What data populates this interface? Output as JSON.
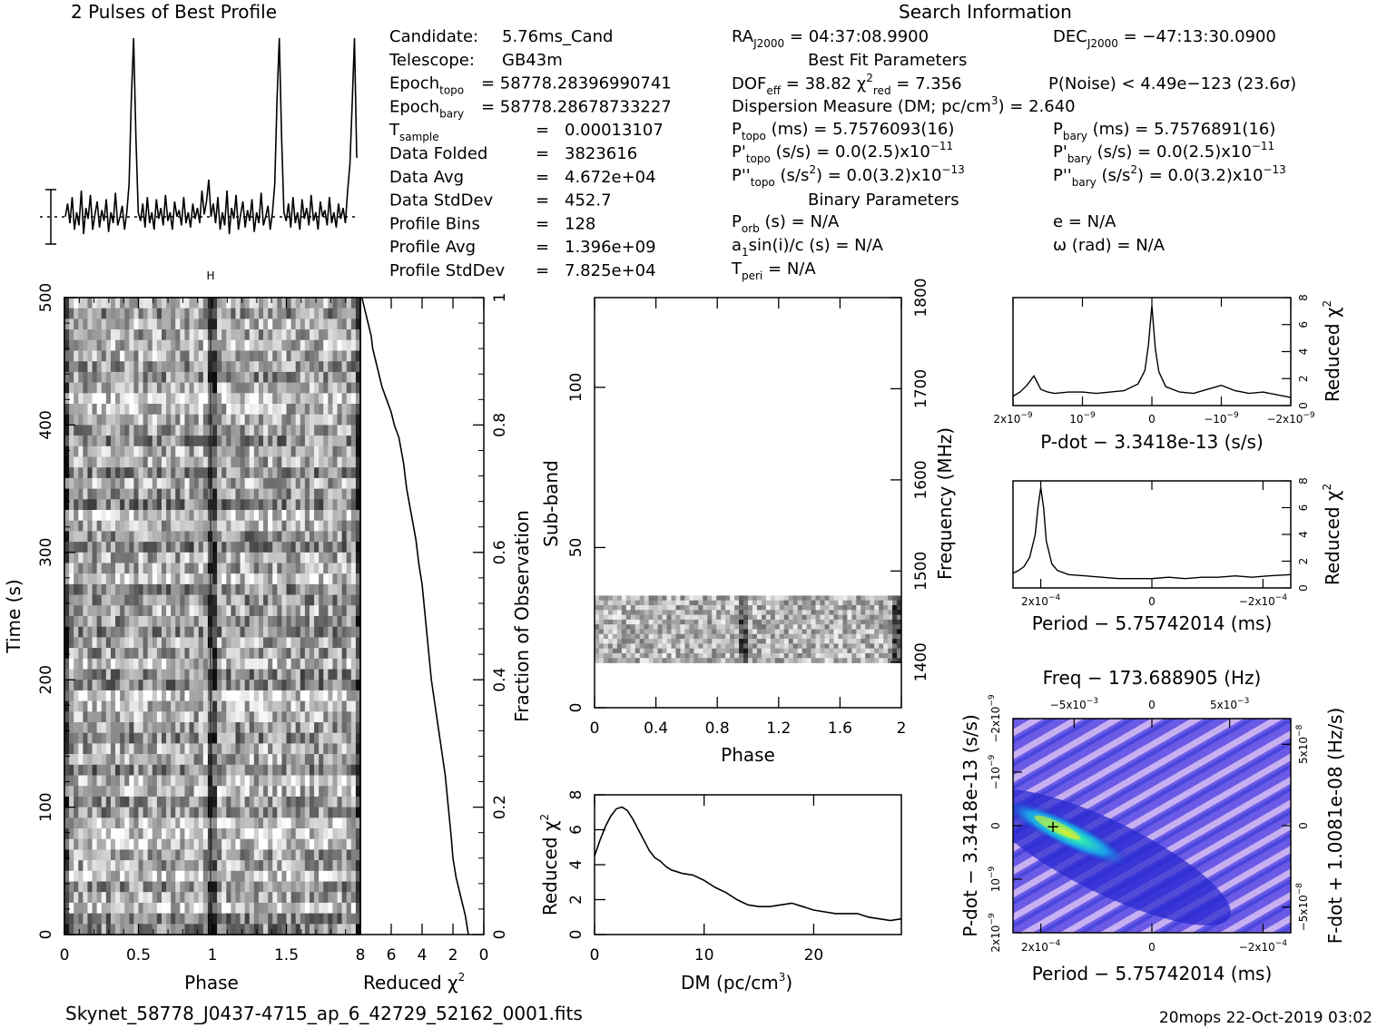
{
  "header": {
    "profile_title": "2 Pulses of Best Profile",
    "search_title": "Search Information",
    "best_fit_title": "Best Fit Parameters",
    "binary_title": "Binary Parameters"
  },
  "info_left": [
    {
      "label": "Candidate:",
      "value": "5.76ms_Cand"
    },
    {
      "label": "Telescope:",
      "value": "GB43m"
    },
    {
      "label": "Epoch",
      "sub": "topo",
      "value": "= 58778.2839699074​1"
    },
    {
      "label": "Epoch",
      "sub": "bary",
      "value": "= 58778.28678733227"
    },
    {
      "label": "T",
      "sub": "sample",
      "eq": "=",
      "value": "0.00013107"
    },
    {
      "label": "Data Folded",
      "eq": "=",
      "value": "3823616"
    },
    {
      "label": "Data Avg",
      "eq": "=",
      "value": "4.672e+04"
    },
    {
      "label": "Data StdDev",
      "eq": "=",
      "value": "452.7"
    },
    {
      "label": "Profile Bins",
      "eq": "=",
      "value": "128"
    },
    {
      "label": "Profile Avg",
      "eq": "=",
      "value": "1.396e+09"
    },
    {
      "label": "Profile StdDev",
      "eq": "=",
      "value": "7.825e+04"
    }
  ],
  "info_right": {
    "ra": "= 04:37:08.9900",
    "dec": "= −47:13:30.0900",
    "dof": "= 38.82",
    "chi_red": "= 7.356",
    "pnoise": "P(Noise) < 4.49e−123   (23.6σ)",
    "dm": "Dispersion Measure (DM; pc/cm",
    "dm_value": ") = 2.640",
    "ptopo": "(ms) =  5.7576093(16)",
    "pbary": "(ms) =  5.7576891(16)",
    "pdtopo": "(s/s) = 0.0(2.5)x10",
    "pdtopo_exp": "−11",
    "pdbary": "(s/s) = 0.0(2.5)x10",
    "pdbary_exp": "−11",
    "pddtopo": "(s/s",
    "pddtopo_tail": ") = 0.0(3.2)x10",
    "pddtopo_exp": "−13",
    "pddbary": "(s/s",
    "pddbary_tail": ") = 0.0(3.2)x10",
    "pddbary_exp": "−13",
    "porb": "(s) = N/A",
    "ecc": "e = N/A",
    "asini": "sin(i)/c (s) = N/A",
    "omega": "ω (rad) = N/A",
    "tperi": "= N/A"
  },
  "footer": {
    "filename": "Skynet_58778_J0437-4715_ap_6_42729_52162_0001.fits",
    "stamp": "20mops 22-Oct-2019 03:02"
  },
  "chart_data": [
    {
      "type": "line",
      "name_key": "profile",
      "title": "2 Pulses of Best Profile",
      "x": "Phase 0–2 (two copies of profile)",
      "values": [
        0.18,
        0.24,
        0.15,
        0.27,
        0.12,
        0.2,
        0.14,
        0.3,
        0.1,
        0.22,
        0.17,
        0.28,
        0.12,
        0.19,
        0.25,
        0.13,
        0.21,
        0.16,
        0.26,
        0.11,
        0.2,
        0.15,
        0.29,
        0.14,
        0.18,
        0.23,
        0.12,
        0.2,
        0.33,
        0.72,
        1.0,
        0.55,
        0.2,
        0.16,
        0.24,
        0.13,
        0.27,
        0.15,
        0.2,
        0.12,
        0.26,
        0.17,
        0.22,
        0.14,
        0.28,
        0.16,
        0.2,
        0.12,
        0.25,
        0.18,
        0.21,
        0.14,
        0.27,
        0.15,
        0.2,
        0.13,
        0.24,
        0.17,
        0.22,
        0.15,
        0.3,
        0.19,
        0.25,
        0.35,
        0.18,
        0.24,
        0.15,
        0.27,
        0.12,
        0.2,
        0.14,
        0.3,
        0.1,
        0.22,
        0.17,
        0.28,
        0.12,
        0.19,
        0.25,
        0.13,
        0.21,
        0.16,
        0.26,
        0.11,
        0.2,
        0.15,
        0.29,
        0.14,
        0.18,
        0.23,
        0.12,
        0.2,
        0.33,
        0.72,
        1.0,
        0.55,
        0.2,
        0.16,
        0.24,
        0.13,
        0.27,
        0.15,
        0.2,
        0.12,
        0.26,
        0.17,
        0.22,
        0.14,
        0.28,
        0.16,
        0.2,
        0.12,
        0.25,
        0.18,
        0.21,
        0.14,
        0.27,
        0.15,
        0.2,
        0.13,
        0.24,
        0.17,
        0.22,
        0.15,
        0.3,
        0.42,
        0.7,
        1.0,
        0.45
      ]
    },
    {
      "type": "heatmap",
      "name_key": "time_phase",
      "xlabel": "Phase",
      "ylabel": "Time (s)",
      "xlim": [
        0,
        2
      ],
      "ylim": [
        0,
        500
      ],
      "xticks": [
        "0",
        "0.5",
        "1",
        "1.5"
      ],
      "yticks": [
        "0",
        "100",
        "200",
        "300",
        "400",
        "500"
      ]
    },
    {
      "type": "line",
      "name_key": "fraction_chi",
      "xlabel": "Reduced χ",
      "ylabel": "Fraction of Observation",
      "xlim": [
        8,
        0
      ],
      "ylim": [
        0,
        1
      ],
      "xticks": [
        "8",
        "6",
        "4",
        "2",
        "0"
      ],
      "yticks": [
        "0",
        "0.2",
        "0.4",
        "0.6",
        "0.8",
        "1"
      ],
      "x": [
        1.0,
        1.2,
        1.5,
        1.8,
        2.0,
        2.1,
        2.3,
        2.5,
        2.8,
        3.1,
        3.4,
        3.6,
        3.8,
        4.0,
        4.2,
        4.4,
        4.7,
        5.0,
        5.2,
        5.5,
        5.8,
        6.0,
        6.3,
        6.6,
        6.8,
        7.0,
        7.2,
        7.3,
        7.5,
        7.6,
        7.7,
        7.9
      ],
      "y": [
        0.0,
        0.03,
        0.06,
        0.09,
        0.12,
        0.15,
        0.2,
        0.25,
        0.3,
        0.35,
        0.4,
        0.45,
        0.5,
        0.55,
        0.58,
        0.62,
        0.66,
        0.7,
        0.74,
        0.78,
        0.8,
        0.82,
        0.84,
        0.86,
        0.88,
        0.9,
        0.92,
        0.94,
        0.96,
        0.97,
        0.98,
        1.0
      ]
    },
    {
      "type": "heatmap",
      "name_key": "subband_phase",
      "xlabel": "Phase",
      "ylabel": "Sub-band",
      "y2label": "Frequency (MHz)",
      "xlim": [
        0,
        2
      ],
      "ylim": [
        0,
        128
      ],
      "y2lim": [
        1350,
        1800
      ],
      "xticks": [
        "0",
        "0.4",
        "0.8",
        "1.2",
        "1.6",
        "2"
      ],
      "yticks": [
        "0",
        "50",
        "100"
      ],
      "y2ticks": [
        "1400",
        "1500",
        "1600",
        "1700",
        "1800"
      ],
      "data_band": [
        14,
        35
      ]
    },
    {
      "type": "line",
      "name_key": "dm_curve",
      "xlabel": "DM (pc/cm",
      "ylabel": "Reduced χ",
      "xlim": [
        0,
        28
      ],
      "ylim": [
        0,
        8
      ],
      "xticks": [
        "0",
        "10",
        "20"
      ],
      "yticks": [
        "0",
        "2",
        "4",
        "6",
        "8"
      ],
      "x": [
        0,
        0.5,
        1,
        1.5,
        2,
        2.5,
        3,
        3.5,
        4,
        4.5,
        5,
        5.5,
        6,
        6.5,
        7,
        7.5,
        8,
        9,
        10,
        11,
        12,
        13,
        14,
        15,
        16,
        17,
        18,
        19,
        20,
        21,
        22,
        23,
        24,
        25,
        26,
        27,
        28
      ],
      "y": [
        4.5,
        5.4,
        6.2,
        6.8,
        7.2,
        7.3,
        7.1,
        6.6,
        6.0,
        5.4,
        4.8,
        4.4,
        4.2,
        3.9,
        3.7,
        3.6,
        3.5,
        3.4,
        3.1,
        2.7,
        2.4,
        2.0,
        1.7,
        1.6,
        1.6,
        1.7,
        1.8,
        1.6,
        1.4,
        1.3,
        1.2,
        1.2,
        1.2,
        1.0,
        0.9,
        0.8,
        0.9
      ]
    },
    {
      "type": "line",
      "name_key": "pdot_chi",
      "xlabel": "P-dot − 3.3418e-13 (s/s)",
      "ylabel": "Reduced χ",
      "xlim": [
        2e-09,
        -2e-09
      ],
      "ylim": [
        0,
        8
      ],
      "xticks": [
        "2x10",
        "10",
        "0",
        "−10",
        "−2x10"
      ],
      "yticks": [
        "0",
        "2",
        "4",
        "6",
        "8"
      ],
      "x": [
        2.0,
        1.9,
        1.8,
        1.7,
        1.6,
        1.5,
        1.4,
        1.2,
        1.0,
        0.8,
        0.6,
        0.4,
        0.2,
        0.1,
        0.05,
        0.0,
        -0.05,
        -0.1,
        -0.2,
        -0.4,
        -0.6,
        -0.8,
        -1.0,
        -1.2,
        -1.4,
        -1.6,
        -1.8,
        -2.0
      ],
      "y": [
        0.7,
        1.0,
        1.5,
        2.2,
        1.2,
        1.0,
        0.9,
        1.0,
        1.0,
        0.9,
        1.0,
        1.1,
        1.6,
        2.6,
        4.5,
        7.4,
        4.2,
        2.5,
        1.4,
        1.0,
        0.9,
        1.2,
        1.5,
        1.1,
        0.9,
        1.0,
        0.8,
        0.6
      ]
    },
    {
      "type": "line",
      "name_key": "period_chi",
      "xlabel": "Period − 5.75742014 (ms)",
      "ylabel": "Reduced χ",
      "xlim": [
        0.00025,
        -0.00025
      ],
      "ylim": [
        0,
        8
      ],
      "xticks": [
        "2x10",
        "0",
        "−2x10"
      ],
      "yticks": [
        "0",
        "2",
        "4",
        "6",
        "8"
      ],
      "x": [
        2.5,
        2.4,
        2.3,
        2.2,
        2.1,
        2.05,
        2.0,
        1.95,
        1.9,
        1.8,
        1.7,
        1.5,
        1.2,
        0.9,
        0.6,
        0.3,
        0.0,
        -0.3,
        -0.6,
        -0.9,
        -1.2,
        -1.5,
        -1.8,
        -2.1,
        -2.5
      ],
      "y": [
        1.1,
        1.3,
        1.6,
        2.3,
        4.0,
        6.0,
        7.5,
        6.0,
        3.5,
        1.8,
        1.3,
        1.0,
        0.9,
        0.8,
        0.7,
        0.7,
        0.7,
        0.8,
        0.7,
        0.8,
        0.8,
        0.9,
        0.8,
        0.9,
        1.0
      ]
    },
    {
      "type": "heatmap",
      "name_key": "pdot_period",
      "title": "Freq − 173.688905 (Hz)",
      "xlabel": "Period − 5.75742014 (ms)",
      "ylabel": "P-dot − 3.3418e-13 (s/s)",
      "y2label": "F-dot + 1.0081e-08 (Hz/s)",
      "xticks": [
        "2x10",
        "0",
        "−2x10"
      ],
      "x2ticks": [
        "−5x10",
        "0",
        "5x10"
      ],
      "yticks": [
        "2x10",
        "10",
        "0",
        "−10",
        "−2x10"
      ],
      "y2ticks": [
        "−5x10",
        "0",
        "5x10"
      ],
      "best": [
        0.0002,
        0
      ]
    }
  ],
  "axis_text": {
    "phase": "Phase",
    "time": "Time (s)",
    "reduced_chi": "Reduced χ",
    "fraction": "Fraction of Observation",
    "subband": "Sub-band",
    "frequency": "Frequency (MHz)",
    "dm": "DM (pc/cm",
    "pdot": "P-dot − 3.3418e-13 (s/s)",
    "period": "Period − 5.75742014 (ms)",
    "freq": "Freq − 173.688905 (Hz)",
    "fdot": "F-dot + 1.0081e-08 (Hz/s)"
  },
  "colors": {
    "ink": "#000000",
    "background": "#ffffff",
    "contour_low": "#3a3ad8",
    "contour_mid": "#b8a0e8",
    "contour_high": "#20e0b0",
    "contour_peak": "#e0f020"
  }
}
